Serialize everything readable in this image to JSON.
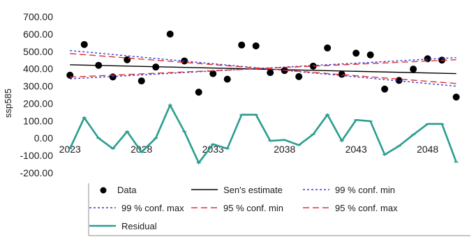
{
  "chart_data": {
    "type": "line",
    "ylabel": "ssp585",
    "ylim": [
      -200,
      700
    ],
    "yticks": [
      "-200.00",
      "-100.00",
      "0.00",
      "100.00",
      "200.00",
      "300.00",
      "400.00",
      "500.00",
      "600.00",
      "700.00"
    ],
    "xlim": [
      2022.5,
      2050.7
    ],
    "xticks": [
      "2023",
      "2028",
      "2033",
      "2038",
      "2043",
      "2048"
    ],
    "grid": false,
    "legend_position": "bottom",
    "series": [
      {
        "name": "Data",
        "style": "scatter",
        "color": "#000000",
        "x": [
          2023,
          2024,
          2025,
          2026,
          2027,
          2028,
          2029,
          2030,
          2031,
          2032,
          2033,
          2034,
          2035,
          2036,
          2037,
          2038,
          2039,
          2040,
          2041,
          2042,
          2043,
          2044,
          2045,
          2046,
          2047,
          2048,
          2049,
          2050
        ],
        "values": [
          363,
          540,
          420,
          353,
          452,
          330,
          410,
          600,
          445,
          265,
          372,
          340,
          537,
          532,
          378,
          390,
          355,
          415,
          520,
          368,
          490,
          480,
          283,
          333,
          398,
          458,
          450,
          237
        ]
      },
      {
        "name": "Sen's estimate",
        "style": "line",
        "color": "#000000",
        "dash": "none",
        "x": [
          2023,
          2050
        ],
        "values": [
          423,
          372
        ]
      },
      {
        "name": "99 % conf. min",
        "style": "line",
        "color": "#3a3ad6",
        "dash": "dotted",
        "x": [
          2023,
          2050
        ],
        "values": [
          342,
          464
        ]
      },
      {
        "name": "99 % conf. max",
        "style": "line",
        "color": "#3a3ad6",
        "dash": "dotted",
        "x": [
          2023,
          2050
        ],
        "values": [
          505,
          300
        ]
      },
      {
        "name": "95 % conf. min",
        "style": "line",
        "color": "#e03030",
        "dash": "dashed",
        "x": [
          2023,
          2050
        ],
        "values": [
          352,
          452
        ]
      },
      {
        "name": "95 % conf. max",
        "style": "line",
        "color": "#e03030",
        "dash": "dashed",
        "x": [
          2023,
          2050
        ],
        "values": [
          488,
          315
        ]
      },
      {
        "name": "Residual",
        "style": "line-marker",
        "color": "#2a9d8f",
        "x": [
          2023,
          2024,
          2025,
          2026,
          2027,
          2028,
          2029,
          2030,
          2031,
          2032,
          2033,
          2034,
          2035,
          2036,
          2037,
          2038,
          2039,
          2040,
          2041,
          2042,
          2043,
          2044,
          2045,
          2046,
          2047,
          2048,
          2049,
          2050
        ],
        "values": [
          -60,
          118,
          0,
          -60,
          38,
          -80,
          0,
          190,
          38,
          -142,
          -35,
          -60,
          135,
          135,
          -15,
          -10,
          -40,
          22,
          135,
          -15,
          105,
          98,
          -95,
          -45,
          20,
          82,
          82,
          -138
        ]
      }
    ]
  }
}
